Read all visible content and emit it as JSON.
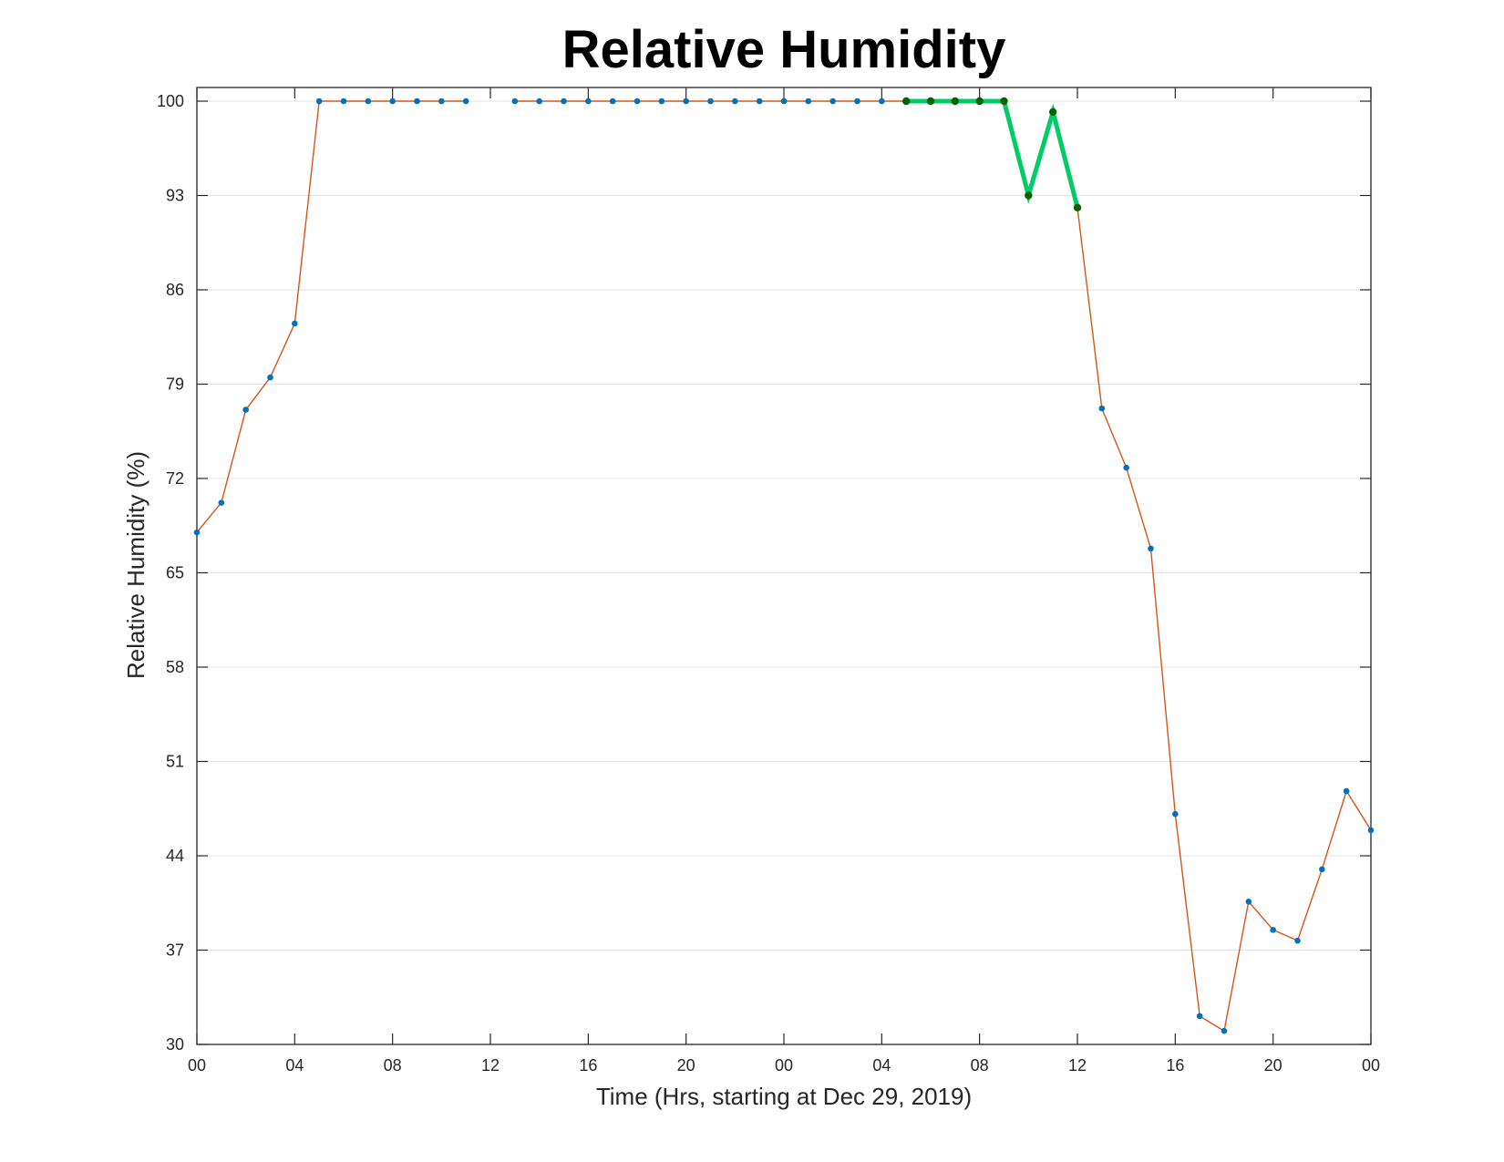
{
  "chart_data": {
    "type": "line",
    "title": "Relative Humidity",
    "xlabel": "Time (Hrs, starting at Dec 29, 2019)",
    "ylabel": "Relative Humidity (%)",
    "ylim": [
      30,
      100
    ],
    "xlim": [
      0,
      48
    ],
    "grid": "horizontal",
    "x_ticks": [
      {
        "x": 0,
        "label": "00"
      },
      {
        "x": 4,
        "label": "04"
      },
      {
        "x": 8,
        "label": "08"
      },
      {
        "x": 12,
        "label": "12"
      },
      {
        "x": 16,
        "label": "16"
      },
      {
        "x": 20,
        "label": "20"
      },
      {
        "x": 24,
        "label": "00"
      },
      {
        "x": 28,
        "label": "04"
      },
      {
        "x": 32,
        "label": "08"
      },
      {
        "x": 36,
        "label": "12"
      },
      {
        "x": 40,
        "label": "16"
      },
      {
        "x": 44,
        "label": "20"
      },
      {
        "x": 48,
        "label": "00"
      }
    ],
    "y_ticks": [
      30,
      37,
      44,
      51,
      58,
      65,
      72,
      79,
      86,
      93,
      100
    ],
    "series": [
      {
        "color": "#D95319",
        "marker_color": "#0072BD",
        "x": [
          0,
          1,
          2,
          3,
          4,
          5,
          6,
          7,
          8,
          9,
          10,
          11,
          12,
          13,
          14,
          15,
          16,
          17,
          18,
          19,
          20,
          21,
          22,
          23,
          24,
          25,
          26,
          27,
          28,
          29,
          30,
          31,
          32,
          33,
          34,
          35,
          36,
          37,
          38,
          39,
          40,
          41,
          42,
          43,
          44,
          45,
          46,
          47,
          48
        ],
        "y": [
          68.0,
          70.2,
          77.1,
          79.5,
          83.5,
          100,
          100,
          100,
          100,
          100,
          100,
          100,
          null,
          100,
          100,
          100,
          100,
          100,
          100,
          100,
          100,
          100,
          100,
          100,
          100,
          100,
          100,
          100,
          100,
          100,
          100,
          100,
          100,
          100,
          93.0,
          99.2,
          92.1,
          77.2,
          72.8,
          66.8,
          47.1,
          32.1,
          31.0,
          40.6,
          38.5,
          37.7,
          43.0,
          48.8,
          45.9
        ]
      },
      {
        "color": "#00CC66",
        "marker_color": "#006400",
        "x": [
          29,
          30,
          31,
          32,
          33,
          34,
          35,
          36
        ],
        "y": [
          100,
          100,
          100,
          100,
          100,
          93.0,
          99.2,
          92.1
        ]
      }
    ]
  }
}
